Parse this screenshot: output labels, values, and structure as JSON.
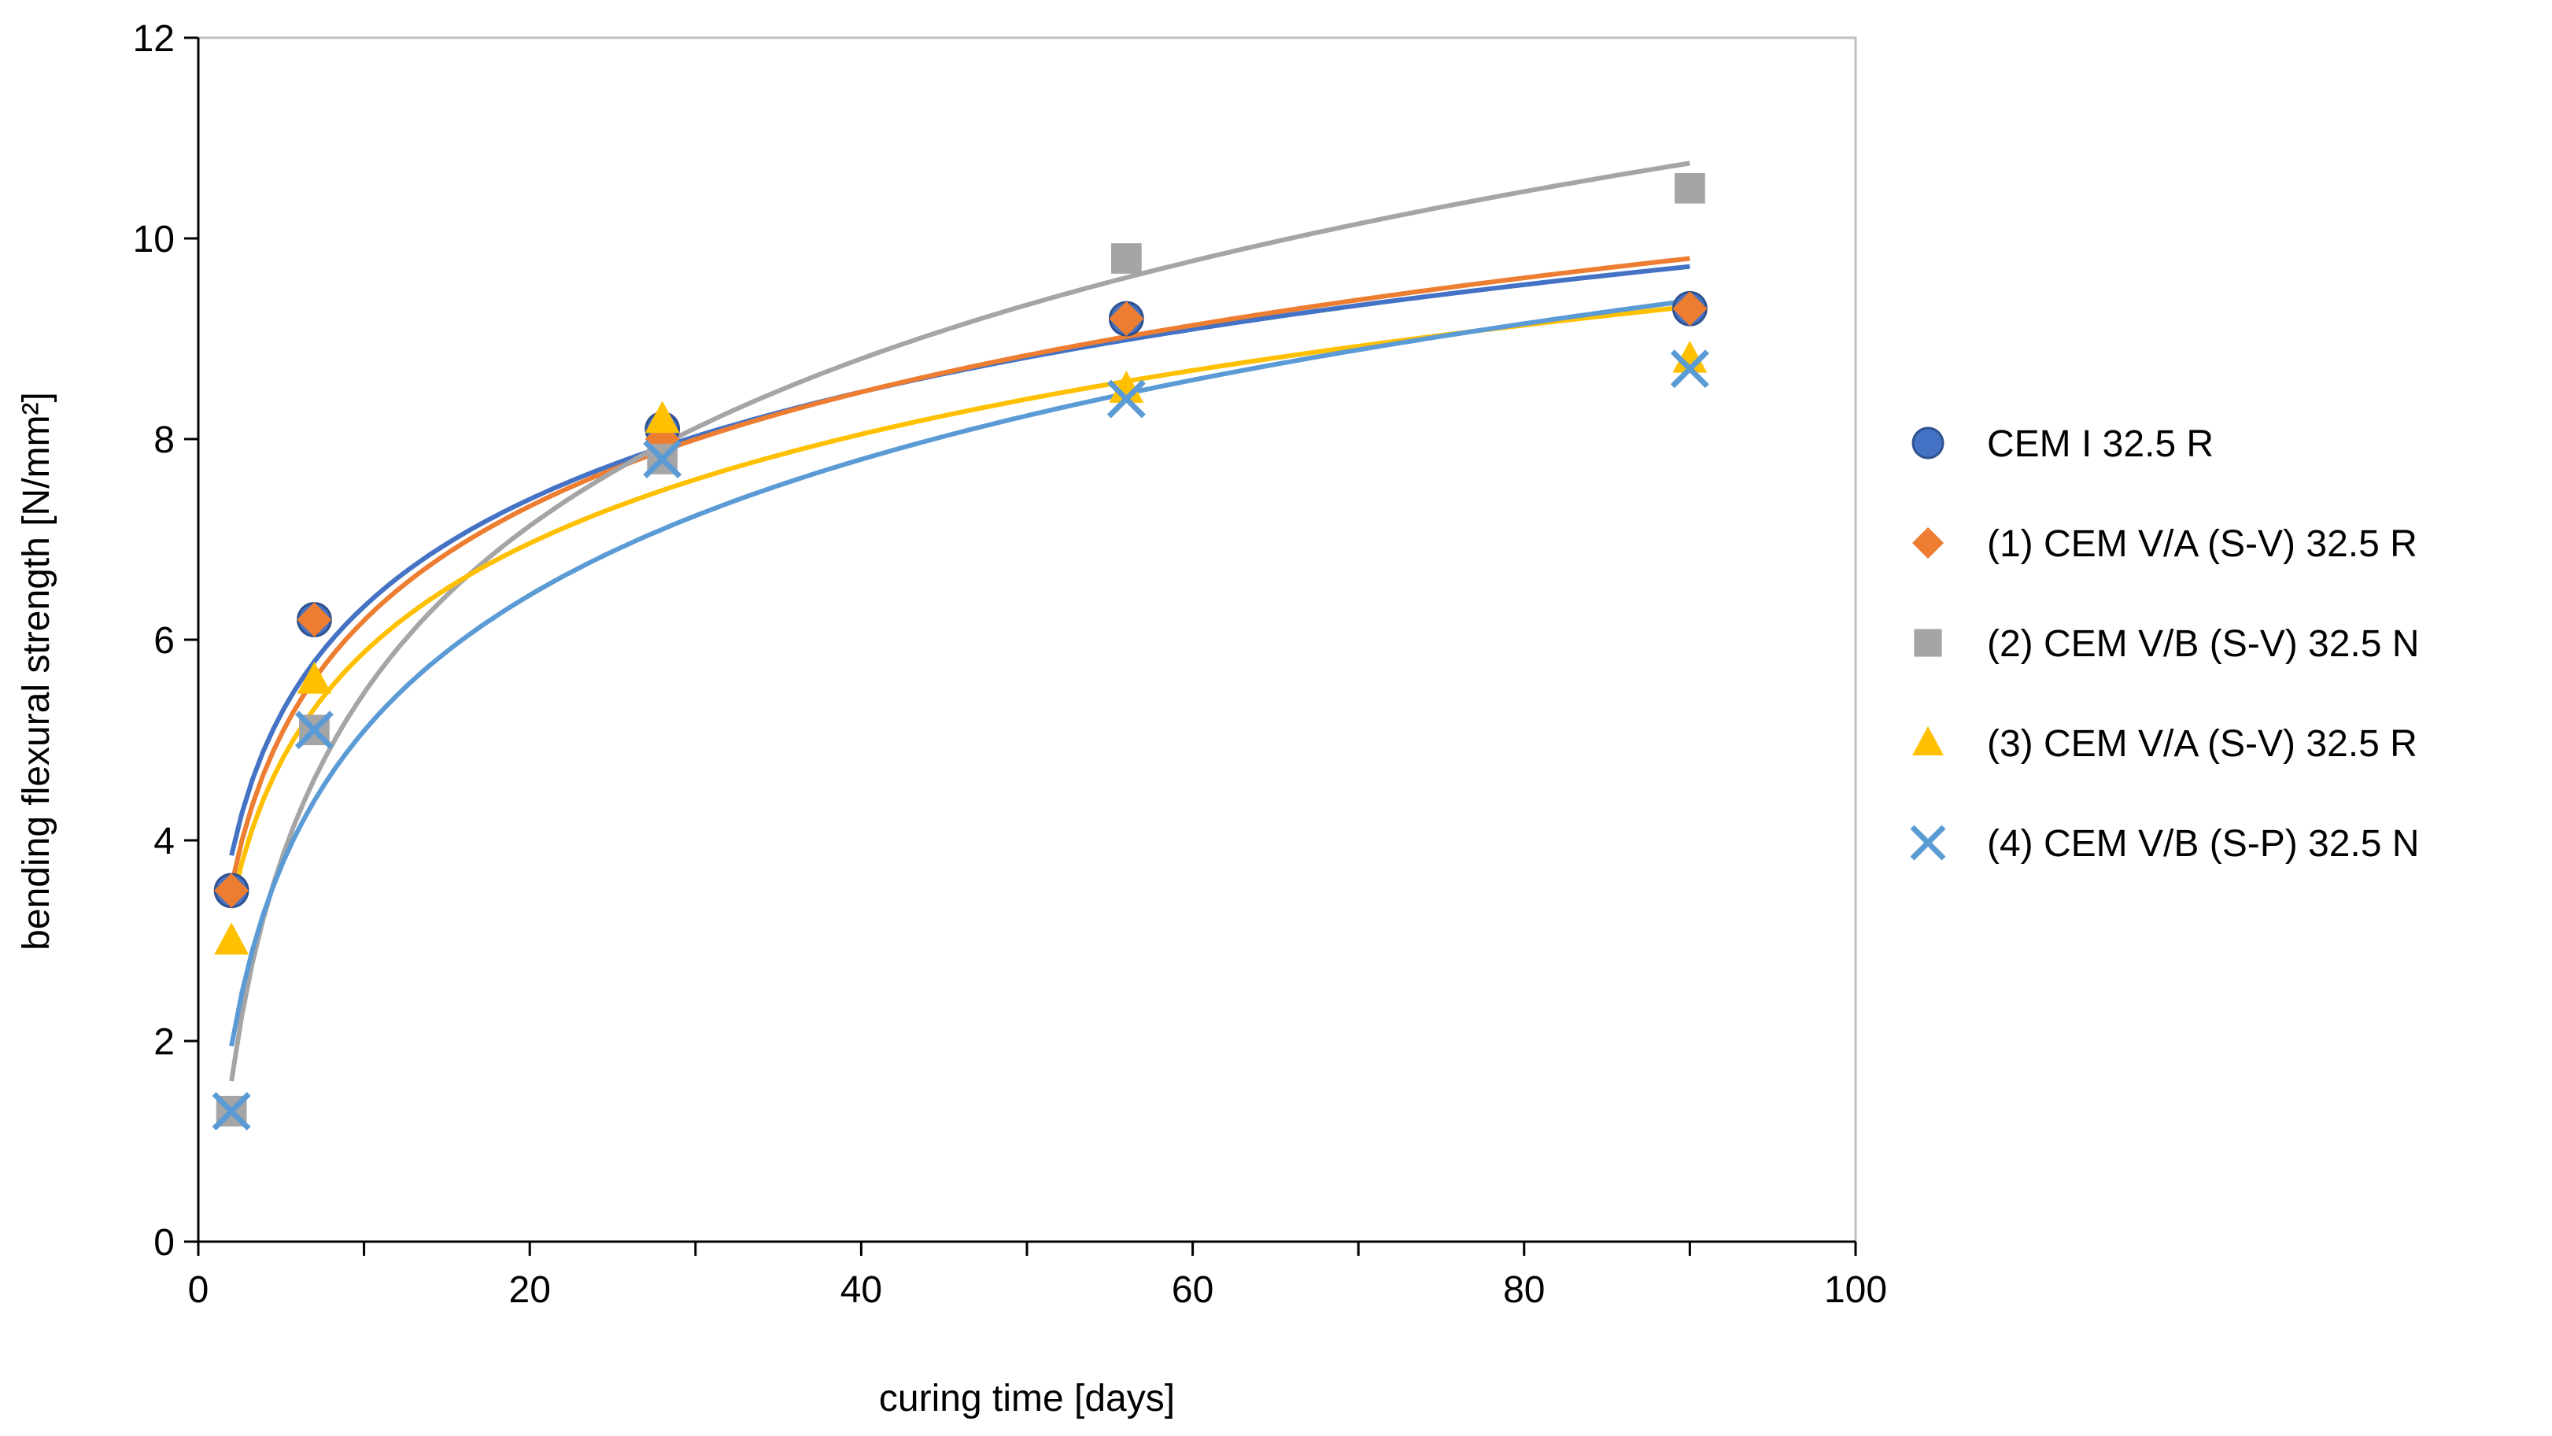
{
  "chart_data": {
    "type": "scatter",
    "title": "",
    "xlabel": "curing time [days]",
    "ylabel": "bending flexural strength [N/mm²]",
    "xlim": [
      0,
      100
    ],
    "ylim": [
      0,
      12
    ],
    "xticks": [
      0,
      20,
      40,
      60,
      80,
      100
    ],
    "xticks_minor": [
      10,
      30,
      50,
      70,
      90
    ],
    "yticks": [
      0,
      2,
      4,
      6,
      8,
      10,
      12
    ],
    "grid": false,
    "legend_position": "right",
    "trendline": "logarithmic",
    "x": [
      2,
      7,
      28,
      56,
      90
    ],
    "series": [
      {
        "name": "CEM I 32.5 R",
        "marker": "circle",
        "color": "#4472C4",
        "line_color": "#4472C4",
        "values": [
          3.5,
          6.2,
          8.1,
          9.2,
          9.3
        ],
        "fit_endpoints": [
          3.85,
          9.72
        ]
      },
      {
        "name": "(1) CEM V/A (S-V) 32.5 R",
        "marker": "diamond",
        "color": "#ED7D31",
        "line_color": "#ED7D31",
        "values": [
          3.5,
          6.2,
          8.0,
          9.2,
          9.3
        ],
        "fit_endpoints": [
          3.55,
          9.8
        ]
      },
      {
        "name": "(2) CEM V/B (S-V) 32.5 N",
        "marker": "square",
        "color": "#A5A5A5",
        "line_color": "#A5A5A5",
        "values": [
          1.3,
          5.1,
          7.8,
          9.8,
          10.5
        ],
        "fit_endpoints": [
          1.6,
          10.75
        ]
      },
      {
        "name": "(3) CEM V/A (S-V) 32.5 R",
        "marker": "triangle",
        "color": "#FFC000",
        "line_color": "#FFC000",
        "values": [
          3.0,
          5.6,
          8.2,
          8.5,
          8.8
        ],
        "fit_endpoints": [
          3.35,
          9.32
        ]
      },
      {
        "name": "(4) CEM V/B (S-P) 32.5 N",
        "marker": "x",
        "color": "#5B9BD5",
        "line_color": "#5B9BD5",
        "values": [
          1.3,
          5.1,
          7.8,
          8.4,
          8.7
        ],
        "fit_endpoints": [
          1.95,
          9.38
        ]
      }
    ]
  }
}
